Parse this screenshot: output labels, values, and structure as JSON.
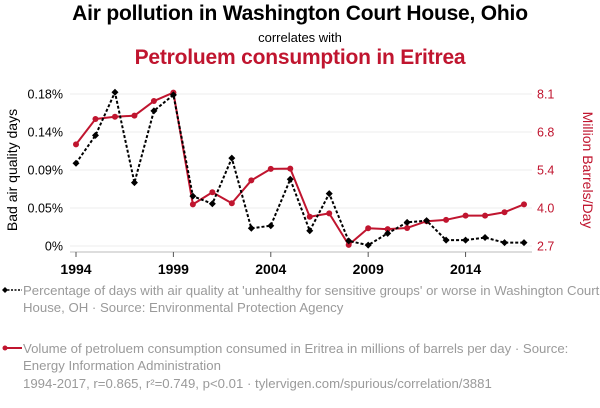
{
  "header": {
    "title": "Air pollution in Washington Court House, Ohio",
    "subtitle": "correlates with",
    "title2": "Petroluem consumption in Eritrea"
  },
  "colors": {
    "series1": "#000000",
    "series2": "#c0152f",
    "grid": "#eeeeee",
    "axis": "#bbbbbb",
    "legend_text": "#9a9a9a"
  },
  "legend": {
    "series1": "Percentage of days with air quality at 'unhealthy for sensitive groups' or worse in Washington Court House, OH · Source: Environmental Protection Agency",
    "series2": "Volume of petroluem consumption consumed in Eritrea in millions of barrels per day · Source: Energy Information Administration"
  },
  "footer": "1994-2017, r=0.865, r²=0.749, p<0.01 · tylervigen.com/spurious/correlation/3881",
  "chart_data": {
    "type": "line",
    "title": "Air pollution in Washington Court House, Ohio correlates with Petroluem consumption in Eritrea",
    "xlabel": "",
    "ylabel": "Bad air quality days",
    "ylabel_right": "Million Barrels/Day",
    "x": [
      1994,
      1995,
      1996,
      1997,
      1998,
      1999,
      2000,
      2001,
      2002,
      2003,
      2004,
      2005,
      2006,
      2007,
      2008,
      2009,
      2010,
      2011,
      2012,
      2013,
      2014,
      2015,
      2016,
      2017
    ],
    "x_ticks": [
      "1994",
      "1999",
      "2004",
      "2009",
      "2014"
    ],
    "x_tick_values": [
      1994,
      1999,
      2004,
      2009,
      2014
    ],
    "xlim": [
      1994,
      2017
    ],
    "ylim": [
      0,
      0.18
    ],
    "y_ticks": [
      "0%",
      "0.05%",
      "0.09%",
      "0.14%",
      "0.18%"
    ],
    "y_tick_values": [
      0,
      0.045,
      0.09,
      0.135,
      0.18
    ],
    "ylim_right": [
      2.7,
      8.1
    ],
    "y_ticks_right": [
      "2.7",
      "4.0",
      "5.4",
      "6.8",
      "8.1"
    ],
    "y_tick_values_right": [
      2.7,
      4.05,
      5.4,
      6.75,
      8.1
    ],
    "grid": true,
    "legend_position": "bottom",
    "series": [
      {
        "name": "Percentage of days with air quality at 'unhealthy for sensitive groups' or worse in Washington Court House, OH",
        "axis": "left",
        "unit": "%",
        "style": "dashed",
        "marker": "diamond",
        "values": [
          0.098,
          0.131,
          0.182,
          0.075,
          0.16,
          0.179,
          0.059,
          0.05,
          0.104,
          0.021,
          0.024,
          0.079,
          0.018,
          0.062,
          0.006,
          0.001,
          0.015,
          0.028,
          0.03,
          0.007,
          0.007,
          0.01,
          0.004,
          0.004
        ]
      },
      {
        "name": "Volume of petroluem consumption consumed in Eritrea in millions of barrels per day",
        "axis": "right",
        "unit": "million barrels/day",
        "style": "solid",
        "marker": "circle",
        "values": [
          6.31,
          7.21,
          7.29,
          7.33,
          7.85,
          8.15,
          4.18,
          4.61,
          4.22,
          5.03,
          5.44,
          5.45,
          3.74,
          3.86,
          2.74,
          3.33,
          3.3,
          3.34,
          3.58,
          3.63,
          3.78,
          3.78,
          3.9,
          4.18
        ]
      }
    ]
  }
}
